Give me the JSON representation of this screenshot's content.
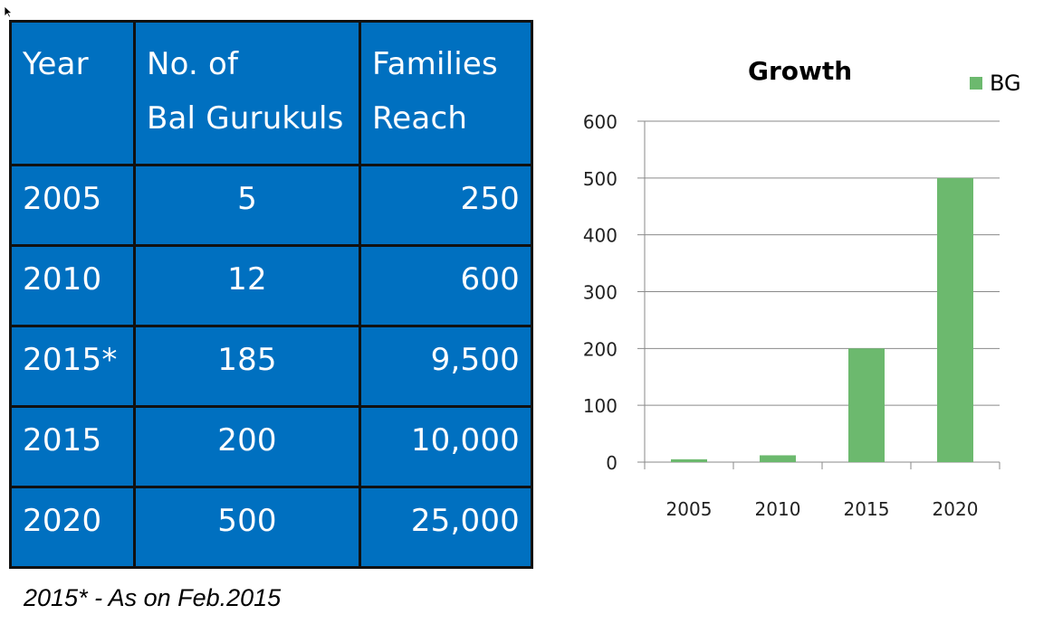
{
  "table": {
    "headers": [
      {
        "line1": "Year",
        "line2": ""
      },
      {
        "line1": "No. of",
        "line2": "Bal Gurukuls"
      },
      {
        "line1": "Families",
        "line2": "Reach"
      }
    ],
    "rows": [
      {
        "year": "2005",
        "gurukuls": "5",
        "families": "250"
      },
      {
        "year": "2010",
        "gurukuls": "12",
        "families": "600"
      },
      {
        "year": "2015*",
        "gurukuls": "185",
        "families": "9,500"
      },
      {
        "year": "2015",
        "gurukuls": "200",
        "families": "10,000"
      },
      {
        "year": "2020",
        "gurukuls": "500",
        "families": "25,000"
      }
    ]
  },
  "footnote": "2015* - As on Feb.2015",
  "chart_data": {
    "type": "bar",
    "title": "Growth",
    "categories": [
      "2005",
      "2010",
      "2015",
      "2020"
    ],
    "series": [
      {
        "name": "BG",
        "values": [
          5,
          12,
          200,
          500
        ],
        "color": "#6cb96e"
      }
    ],
    "ylim": [
      0,
      600
    ],
    "yticks": [
      "0",
      "100",
      "200",
      "300",
      "400",
      "500",
      "600"
    ],
    "xlabel": "",
    "ylabel": "",
    "grid": true,
    "legend_position": "top-right"
  }
}
